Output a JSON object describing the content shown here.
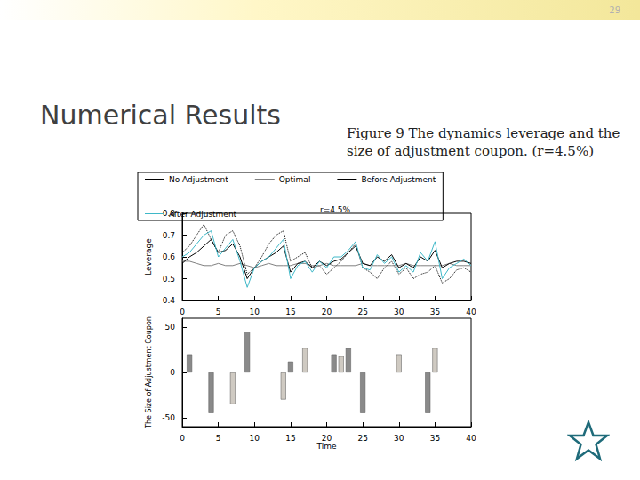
{
  "slide": {
    "page_number": "29",
    "title": "Numerical Results",
    "caption": "Figure 9 The dynamics leverage and the size of adjustment coupon. (r=4.5%)"
  },
  "chart_data": [
    {
      "type": "line",
      "title": "r=4.5%",
      "y_label": "Leverage",
      "legend": "top",
      "grid": false,
      "x": [
        0,
        1,
        2,
        3,
        4,
        5,
        6,
        7,
        8,
        9,
        10,
        11,
        12,
        13,
        14,
        15,
        16,
        17,
        18,
        19,
        20,
        21,
        22,
        23,
        24,
        25,
        26,
        27,
        28,
        29,
        30,
        31,
        32,
        33,
        34,
        35,
        36,
        37,
        38,
        39,
        40
      ],
      "series": [
        {
          "name": "No Adjustment",
          "color": "#000000",
          "line_style": "dotted",
          "values": [
            0.62,
            0.65,
            0.7,
            0.75,
            0.68,
            0.62,
            0.7,
            0.72,
            0.65,
            0.52,
            0.55,
            0.6,
            0.66,
            0.7,
            0.72,
            0.58,
            0.6,
            0.62,
            0.55,
            0.56,
            0.52,
            0.55,
            0.58,
            0.62,
            0.66,
            0.55,
            0.53,
            0.5,
            0.55,
            0.58,
            0.52,
            0.55,
            0.5,
            0.52,
            0.53,
            0.56,
            0.48,
            0.5,
            0.54,
            0.55,
            0.53
          ]
        },
        {
          "name": "Optimal",
          "color": "#808080",
          "line_style": "solid",
          "values": [
            0.58,
            0.58,
            0.57,
            0.56,
            0.56,
            0.57,
            0.56,
            0.56,
            0.57,
            0.56,
            0.55,
            0.56,
            0.57,
            0.56,
            0.56,
            0.56,
            0.57,
            0.57,
            0.56,
            0.56,
            0.57,
            0.56,
            0.56,
            0.56,
            0.56,
            0.57,
            0.56,
            0.56,
            0.56,
            0.56,
            0.56,
            0.57,
            0.56,
            0.56,
            0.56,
            0.56,
            0.56,
            0.57,
            0.56,
            0.56,
            0.56
          ]
        },
        {
          "name": "Before Adjustment",
          "color": "#000000",
          "line_style": "solid",
          "values": [
            0.57,
            0.6,
            0.62,
            0.65,
            0.68,
            0.62,
            0.63,
            0.66,
            0.6,
            0.5,
            0.55,
            0.58,
            0.6,
            0.62,
            0.65,
            0.53,
            0.57,
            0.58,
            0.55,
            0.58,
            0.56,
            0.58,
            0.59,
            0.62,
            0.65,
            0.57,
            0.56,
            0.6,
            0.58,
            0.61,
            0.55,
            0.57,
            0.55,
            0.6,
            0.58,
            0.63,
            0.55,
            0.57,
            0.58,
            0.58,
            0.57
          ]
        },
        {
          "name": "After Adjustment",
          "color": "#3fb8c8",
          "line_style": "solid",
          "values": [
            0.6,
            0.62,
            0.66,
            0.7,
            0.72,
            0.6,
            0.64,
            0.68,
            0.58,
            0.46,
            0.55,
            0.58,
            0.6,
            0.64,
            0.68,
            0.5,
            0.56,
            0.58,
            0.53,
            0.58,
            0.55,
            0.6,
            0.6,
            0.63,
            0.67,
            0.55,
            0.54,
            0.61,
            0.57,
            0.6,
            0.53,
            0.56,
            0.53,
            0.62,
            0.58,
            0.67,
            0.5,
            0.55,
            0.57,
            0.59,
            0.56
          ]
        }
      ],
      "xlim": [
        0,
        40
      ],
      "xticks": [
        0,
        5,
        10,
        15,
        20,
        25,
        30,
        35,
        40
      ],
      "ylim": [
        0.4,
        0.8
      ],
      "yticks": [
        0.4,
        0.5,
        0.6,
        0.7,
        0.8
      ]
    },
    {
      "type": "bar",
      "x_label": "Time",
      "y_label": "The Size of Adjustment Coupon",
      "grid": false,
      "x": [
        1,
        4,
        7,
        9,
        14,
        15,
        17,
        21,
        22,
        23,
        25,
        30,
        34,
        35
      ],
      "values": [
        20,
        -45,
        -35,
        45,
        -30,
        12,
        27,
        20,
        18,
        27,
        -45,
        20,
        -45,
        27
      ],
      "colors": [
        "#8a8a8a",
        "#8a8a8a",
        "#cfcac2",
        "#8a8a8a",
        "#cfcac2",
        "#8a8a8a",
        "#cfcac2",
        "#8a8a8a",
        "#cfcac2",
        "#8a8a8a",
        "#8a8a8a",
        "#cfcac2",
        "#8a8a8a",
        "#cfcac2"
      ],
      "xlim": [
        0,
        40
      ],
      "xticks": [
        0,
        5,
        10,
        15,
        20,
        25,
        30,
        35,
        40
      ],
      "ylim": [
        -60,
        60
      ],
      "yticks": [
        -50,
        0,
        50
      ]
    }
  ]
}
